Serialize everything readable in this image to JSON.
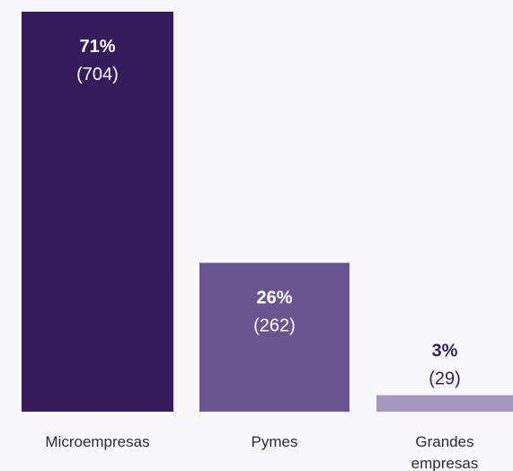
{
  "chart_data": {
    "type": "bar",
    "categories": [
      "Microempresas",
      "Pymes",
      "Grandes\nempresas"
    ],
    "category_lines": [
      [
        "Microempresas"
      ],
      [
        "Pymes"
      ],
      [
        "Grandes",
        "empresas"
      ]
    ],
    "percent_labels": [
      "71%",
      "26%",
      "3%"
    ],
    "count_labels": [
      "(704)",
      "(262)",
      "(29)"
    ],
    "values": [
      704,
      262,
      29
    ],
    "colors": [
      "#351c5b",
      "#6a5590",
      "#a697bd"
    ],
    "label_color_inside": "#ffffff",
    "label_color_outside": "#351c5b",
    "background": "#f7f7fa",
    "ylim": [
      0,
      704
    ],
    "grid": false,
    "legend": "none"
  }
}
